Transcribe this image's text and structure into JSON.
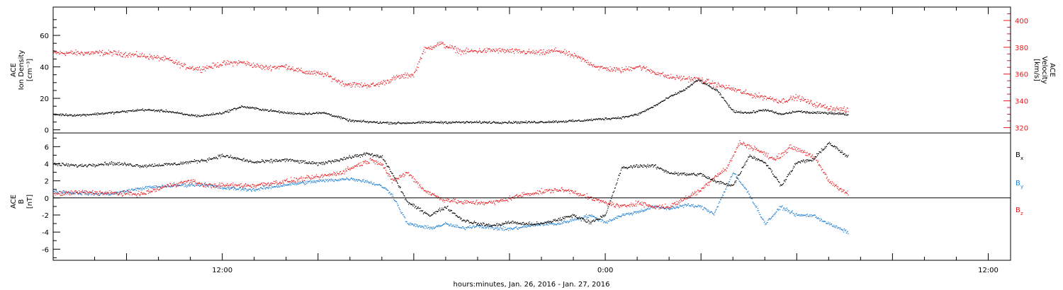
{
  "xlabel": "hours:minutes, Jan. 26, 2016 - Jan. 27, 2016",
  "x_tick_labels": [
    "12:00",
    "0:00",
    "12:00"
  ],
  "colors": {
    "black": "#000000",
    "red": "#e8191e",
    "blue": "#1f7fd2",
    "axis": "#000000",
    "right_axis": "#e8191e"
  },
  "chart_data": [
    {
      "type": "scatter",
      "panel": "top",
      "x_unit": "hours since Jan. 26, 2016 0:00",
      "xlim": [
        6.7,
        36.7
      ],
      "left_axis": {
        "label_lines": [
          "ACE",
          "Ion Density",
          "[cm⁻³]"
        ],
        "ylim": [
          -2,
          78
        ],
        "ticks": [
          0,
          20,
          40,
          60
        ],
        "tick_labels": [
          "0",
          "20",
          "40",
          "60"
        ]
      },
      "right_axis": {
        "label_lines": [
          "ACE",
          "Velocity",
          "[km/s]"
        ],
        "ylim": [
          316,
          410
        ],
        "ticks": [
          320,
          340,
          360,
          380,
          400
        ],
        "tick_labels": [
          "320",
          "340",
          "360",
          "380",
          "400"
        ]
      },
      "series": [
        {
          "name": "Ion Density",
          "color": "black",
          "axis": "left",
          "x": [
            6.7,
            7.5,
            8.5,
            9.5,
            10.3,
            10.8,
            11.3,
            12.0,
            12.6,
            13.3,
            14.0,
            14.5,
            15.2,
            16.0,
            16.8,
            17.5,
            18.5,
            19.5,
            20.5,
            21.5,
            22.5,
            23.2,
            23.8,
            24.5,
            25.0,
            25.5,
            26.0,
            26.5,
            26.9,
            27.5,
            28.0,
            28.5,
            29.0,
            29.5,
            30.0,
            30.5,
            31.0,
            31.6
          ],
          "y": [
            10,
            9.5,
            11,
            13,
            12,
            10,
            9,
            11,
            15,
            13,
            11,
            10.5,
            11,
            6,
            5,
            4.5,
            5,
            5,
            5,
            5,
            5.5,
            6,
            7,
            8,
            10,
            15,
            21,
            26,
            32,
            25,
            12,
            11,
            13,
            10,
            12,
            11,
            11,
            10
          ]
        },
        {
          "name": "Velocity",
          "color": "red",
          "axis": "right",
          "x": [
            6.7,
            7.5,
            8.5,
            9.5,
            10.3,
            10.8,
            11.3,
            12.0,
            12.6,
            13.3,
            14.0,
            14.5,
            15.2,
            15.8,
            16.3,
            16.8,
            17.5,
            18.0,
            18.3,
            18.8,
            19.5,
            20.5,
            21.3,
            22.0,
            22.5,
            23.2,
            23.8,
            24.5,
            25.0,
            25.5,
            26.0,
            26.5,
            27.0,
            27.5,
            28.0,
            28.5,
            29.0,
            29.5,
            30.0,
            30.5,
            31.0,
            31.6
          ],
          "y": [
            376,
            376,
            376,
            374,
            371,
            366,
            364,
            368,
            369,
            365,
            366,
            362,
            360,
            353,
            352,
            352,
            358,
            360,
            378,
            383,
            377,
            378,
            377,
            376,
            378,
            372,
            365,
            363,
            366,
            362,
            358,
            357,
            356,
            352,
            349,
            345,
            343,
            340,
            343,
            338,
            335,
            333
          ]
        }
      ]
    },
    {
      "type": "scatter",
      "panel": "bottom",
      "x_unit": "hours since Jan. 26, 2016 0:00",
      "xlim": [
        6.7,
        36.7
      ],
      "left_axis": {
        "label_lines": [
          "ACE",
          "B",
          "[nT]"
        ],
        "ylim": [
          -7.3,
          7.6
        ],
        "ticks": [
          -6,
          -4,
          -2,
          0,
          2,
          4,
          6
        ],
        "tick_labels": [
          "-6",
          "-4",
          "-2",
          "0",
          "2",
          "4",
          "6"
        ]
      },
      "zero_line": true,
      "legend_position": "right",
      "series": [
        {
          "name": "B_x",
          "legend_main": "B",
          "legend_sub": "x",
          "color": "black",
          "x": [
            6.7,
            7.5,
            8.5,
            9.5,
            10.5,
            11.5,
            12.0,
            13.0,
            14.0,
            15.0,
            16.0,
            16.5,
            17.0,
            17.3,
            17.8,
            18.5,
            19.0,
            19.5,
            20.0,
            20.5,
            21.0,
            21.5,
            22.0,
            22.5,
            23.0,
            23.5,
            24.0,
            24.5,
            25.0,
            25.5,
            26.0,
            26.5,
            27.0,
            27.4,
            28.0,
            28.5,
            29.0,
            29.5,
            30.0,
            30.5,
            31.0,
            31.6
          ],
          "y": [
            4.0,
            3.8,
            4.1,
            3.8,
            4.0,
            4.5,
            5.0,
            4.2,
            4.5,
            4.0,
            4.8,
            5.2,
            4.8,
            3.0,
            -0.5,
            -2.0,
            -1.0,
            -2.5,
            -3.0,
            -3.2,
            -2.8,
            -3.0,
            -3.0,
            -2.5,
            -2.0,
            -2.8,
            -2.0,
            3.5,
            3.8,
            3.8,
            3.0,
            2.8,
            2.8,
            2.0,
            1.5,
            5.0,
            4.2,
            1.5,
            4.2,
            4.5,
            6.5,
            4.8
          ]
        },
        {
          "name": "B_y",
          "legend_main": "B",
          "legend_sub": "y",
          "color": "blue",
          "x": [
            6.7,
            7.5,
            8.5,
            9.5,
            10.5,
            11.5,
            12.0,
            13.0,
            14.0,
            15.0,
            16.0,
            16.5,
            17.0,
            17.3,
            17.8,
            18.5,
            19.0,
            19.5,
            20.0,
            20.5,
            21.0,
            21.5,
            22.0,
            22.5,
            23.0,
            23.5,
            24.0,
            24.5,
            25.0,
            25.5,
            26.0,
            26.5,
            27.0,
            27.4,
            28.0,
            28.5,
            29.0,
            29.5,
            30.0,
            30.5,
            31.0,
            31.6
          ],
          "y": [
            0.8,
            0.6,
            0.5,
            1.2,
            1.5,
            1.6,
            1.2,
            1.0,
            1.6,
            2.0,
            2.3,
            2.0,
            1.4,
            0.5,
            -3.0,
            -3.5,
            -3.0,
            -3.5,
            -3.2,
            -3.5,
            -3.6,
            -3.3,
            -3.0,
            -3.0,
            -2.5,
            -2.0,
            -2.8,
            -2.0,
            -1.6,
            -1.0,
            -1.2,
            -0.8,
            -1.0,
            -1.8,
            3.0,
            0.5,
            -3.0,
            -1.0,
            -2.0,
            -2.0,
            -3.0,
            -4.0
          ]
        },
        {
          "name": "B_z",
          "legend_main": "B",
          "legend_sub": "z",
          "color": "red",
          "x": [
            6.7,
            7.5,
            8.5,
            9.5,
            10.3,
            11.0,
            11.5,
            12.0,
            13.0,
            14.0,
            15.0,
            15.7,
            16.3,
            16.7,
            17.0,
            17.3,
            17.8,
            18.3,
            18.8,
            19.5,
            20.5,
            21.5,
            22.5,
            23.0,
            23.5,
            24.0,
            24.5,
            25.0,
            25.5,
            26.0,
            26.5,
            27.0,
            27.4,
            27.8,
            28.2,
            28.7,
            29.3,
            29.8,
            30.2,
            30.6,
            31.0,
            31.6
          ],
          "y": [
            0.5,
            0.7,
            0.6,
            0.5,
            1.5,
            2.0,
            1.5,
            1.5,
            1.5,
            2.0,
            2.5,
            3.0,
            4.0,
            4.5,
            4.0,
            2.0,
            3.0,
            1.0,
            0.0,
            -0.5,
            -0.5,
            0.5,
            1.0,
            0.8,
            0.0,
            -0.5,
            -1.0,
            -0.5,
            -1.0,
            -1.0,
            0.0,
            1.0,
            2.5,
            3.5,
            6.5,
            5.8,
            4.5,
            6.0,
            5.5,
            4.5,
            2.0,
            0.5
          ]
        }
      ]
    }
  ]
}
